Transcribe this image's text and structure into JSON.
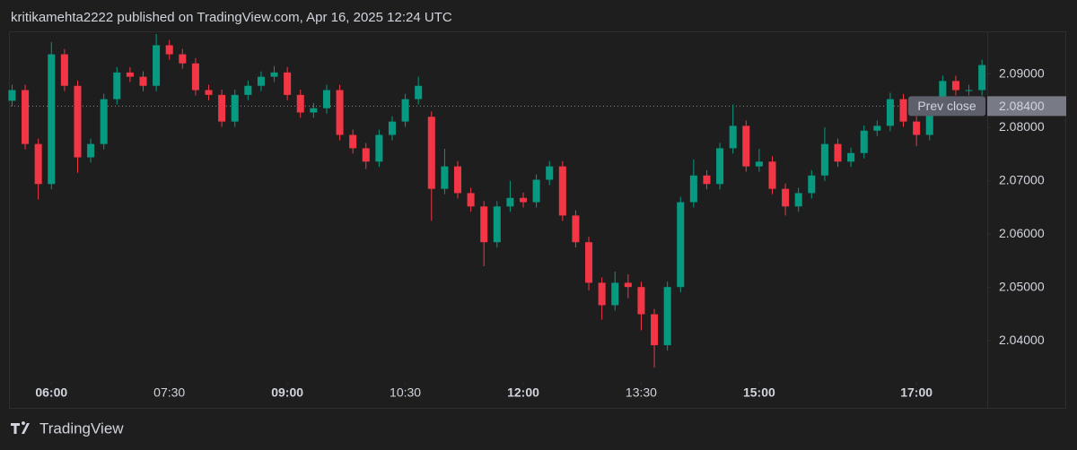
{
  "header": "kritikamehta2222 published on TradingView.com, Apr 16, 2025 12:24 UTC",
  "footer": "TradingView",
  "chart_data": {
    "type": "candlestick",
    "up_color": "#089981",
    "down_color": "#f23645",
    "x": [
      330,
      340,
      350,
      360,
      370,
      380,
      390,
      400,
      410,
      420,
      430,
      440,
      450,
      460,
      470,
      480,
      490,
      500,
      510,
      520,
      530,
      540,
      550,
      560,
      570,
      580,
      590,
      600,
      610,
      620,
      630,
      640,
      650,
      660,
      670,
      680,
      690,
      700,
      710,
      720,
      730,
      740,
      750,
      760,
      770,
      780,
      790,
      800,
      810,
      820,
      830,
      840,
      850,
      860,
      870,
      880,
      890,
      900,
      910,
      920,
      930,
      940,
      950,
      960,
      970,
      980,
      990,
      1000,
      1010,
      1020,
      1030,
      1040,
      1050,
      1060,
      1070
    ],
    "open": [
      2.085,
      2.087,
      2.0769,
      2.0694,
      2.0937,
      2.0878,
      2.0744,
      2.0769,
      2.0853,
      2.0903,
      2.0895,
      2.0878,
      2.0954,
      2.0937,
      2.092,
      2.087,
      2.0861,
      2.0811,
      2.0861,
      2.0878,
      2.0895,
      2.0903,
      2.0861,
      2.0828,
      2.0836,
      2.087,
      2.0786,
      2.0761,
      2.0736,
      2.0786,
      2.0811,
      2.0853,
      2.082,
      2.0685,
      2.0727,
      2.0677,
      2.0652,
      2.0585,
      2.0652,
      2.0668,
      2.066,
      2.0702,
      2.0727,
      2.0635,
      2.0585,
      2.0509,
      2.0467,
      2.0509,
      2.0501,
      2.045,
      2.0392,
      2.0501,
      2.066,
      2.071,
      2.0694,
      2.0761,
      2.0803,
      2.0727,
      2.0736,
      2.0685,
      2.0652,
      2.0677,
      2.071,
      2.0769,
      2.0736,
      2.0752,
      2.0794,
      2.0803,
      2.0853,
      2.0811,
      2.0786,
      2.0845,
      2.0887,
      2.087,
      2.087
    ],
    "high": [
      2.088,
      2.088,
      2.0779,
      2.096,
      2.0947,
      2.0888,
      2.0779,
      2.0863,
      2.0913,
      2.0913,
      2.0905,
      2.0975,
      2.0964,
      2.0947,
      2.093,
      2.088,
      2.0871,
      2.0871,
      2.0888,
      2.0905,
      2.0915,
      2.0913,
      2.0871,
      2.0846,
      2.088,
      2.088,
      2.0796,
      2.0771,
      2.0796,
      2.0821,
      2.0863,
      2.0895,
      2.083,
      2.076,
      2.0737,
      2.0687,
      2.0662,
      2.0662,
      2.07,
      2.0678,
      2.0712,
      2.0737,
      2.0737,
      2.0645,
      2.0595,
      2.0519,
      2.053,
      2.0525,
      2.0511,
      2.046,
      2.0511,
      2.067,
      2.074,
      2.072,
      2.0771,
      2.0843,
      2.0813,
      2.076,
      2.0746,
      2.0695,
      2.0687,
      2.072,
      2.08,
      2.0779,
      2.0762,
      2.0804,
      2.0813,
      2.0865,
      2.0863,
      2.0821,
      2.0855,
      2.0897,
      2.0897,
      2.088,
      2.0927
    ],
    "low": [
      2.084,
      2.0759,
      2.0665,
      2.0684,
      2.0868,
      2.0715,
      2.0734,
      2.0759,
      2.0843,
      2.0885,
      2.0868,
      2.0868,
      2.0927,
      2.091,
      2.086,
      2.0851,
      2.0801,
      2.0801,
      2.0851,
      2.0868,
      2.0885,
      2.0851,
      2.0818,
      2.0818,
      2.0826,
      2.0776,
      2.0751,
      2.0722,
      2.0726,
      2.0776,
      2.0801,
      2.0843,
      2.0625,
      2.0675,
      2.0667,
      2.0642,
      2.054,
      2.0575,
      2.0642,
      2.065,
      2.065,
      2.0692,
      2.0625,
      2.0575,
      2.0495,
      2.044,
      2.0457,
      2.048,
      2.042,
      2.035,
      2.0382,
      2.0491,
      2.065,
      2.0684,
      2.0684,
      2.0751,
      2.0717,
      2.0717,
      2.0675,
      2.0635,
      2.0642,
      2.0667,
      2.07,
      2.0726,
      2.0726,
      2.0742,
      2.0784,
      2.0793,
      2.0801,
      2.0765,
      2.0776,
      2.0835,
      2.086,
      2.086,
      2.086
    ],
    "close": [
      2.087,
      2.0769,
      2.0694,
      2.0937,
      2.0878,
      2.0744,
      2.0769,
      2.0853,
      2.0903,
      2.0895,
      2.0878,
      2.0954,
      2.0937,
      2.092,
      2.087,
      2.0861,
      2.0811,
      2.0861,
      2.0878,
      2.0895,
      2.0903,
      2.0861,
      2.0828,
      2.0836,
      2.087,
      2.0786,
      2.0761,
      2.0736,
      2.0786,
      2.0811,
      2.0853,
      2.0878,
      2.0685,
      2.0727,
      2.0677,
      2.0652,
      2.0585,
      2.0652,
      2.0668,
      2.066,
      2.0702,
      2.0727,
      2.0635,
      2.0585,
      2.0509,
      2.0467,
      2.0509,
      2.0501,
      2.045,
      2.0392,
      2.0501,
      2.066,
      2.071,
      2.0694,
      2.0761,
      2.0803,
      2.0727,
      2.0736,
      2.0685,
      2.0652,
      2.0677,
      2.071,
      2.0769,
      2.0736,
      2.0752,
      2.0794,
      2.0803,
      2.0853,
      2.0811,
      2.0786,
      2.0845,
      2.0887,
      2.087,
      2.087,
      2.0917
    ],
    "xlim": [
      329,
      1074
    ],
    "xticks": [
      {
        "value": 360,
        "label": "06:00"
      },
      {
        "value": 450,
        "label": "07:30"
      },
      {
        "value": 540,
        "label": "09:00"
      },
      {
        "value": 630,
        "label": "10:30"
      },
      {
        "value": 720,
        "label": "12:00"
      },
      {
        "value": 810,
        "label": "13:30"
      },
      {
        "value": 900,
        "label": "15:00"
      },
      {
        "value": 1020,
        "label": "17:00"
      }
    ],
    "ylim": [
      2.0325,
      2.098
    ],
    "yticks": [
      {
        "value": 2.04,
        "label": "2.04000"
      },
      {
        "value": 2.05,
        "label": "2.05000"
      },
      {
        "value": 2.06,
        "label": "2.06000"
      },
      {
        "value": 2.07,
        "label": "2.07000"
      },
      {
        "value": 2.08,
        "label": "2.08000"
      },
      {
        "value": 2.09,
        "label": "2.09000"
      }
    ],
    "prev_close": {
      "label": "Prev close",
      "value": 2.084,
      "value_label": "2.08400"
    }
  }
}
